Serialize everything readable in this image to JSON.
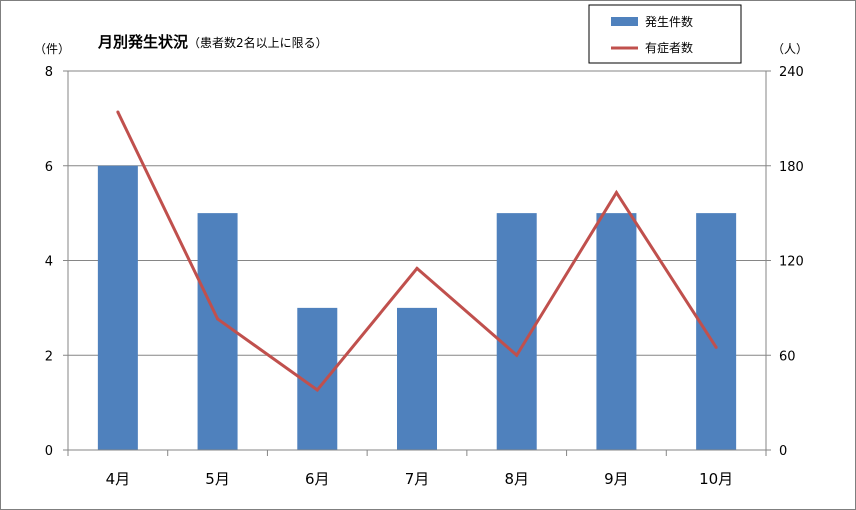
{
  "chart_data": {
    "type": "bar",
    "title": "月別発生状況",
    "subtitle": "（患者数2名以上に限る）",
    "categories": [
      "4月",
      "5月",
      "6月",
      "7月",
      "8月",
      "9月",
      "10月"
    ],
    "series": [
      {
        "name": "発生件数",
        "type": "bar",
        "axis": "left",
        "values": [
          6,
          5,
          3,
          3,
          5,
          5,
          5
        ],
        "color": "#4f81bd"
      },
      {
        "name": "有症者数",
        "type": "line",
        "axis": "right",
        "values": [
          214,
          83,
          38,
          115,
          60,
          163,
          65
        ],
        "color": "#c0504d"
      }
    ],
    "y_left": {
      "unit": "（件）",
      "ylim": [
        0,
        8
      ],
      "ticks": [
        "0",
        "2",
        "4",
        "6",
        "8"
      ]
    },
    "y_right": {
      "unit": "（人）",
      "ylim": [
        0,
        240
      ],
      "ticks": [
        "0",
        "60",
        "120",
        "180",
        "240"
      ]
    },
    "grid": true,
    "legend_position": "top-right"
  }
}
